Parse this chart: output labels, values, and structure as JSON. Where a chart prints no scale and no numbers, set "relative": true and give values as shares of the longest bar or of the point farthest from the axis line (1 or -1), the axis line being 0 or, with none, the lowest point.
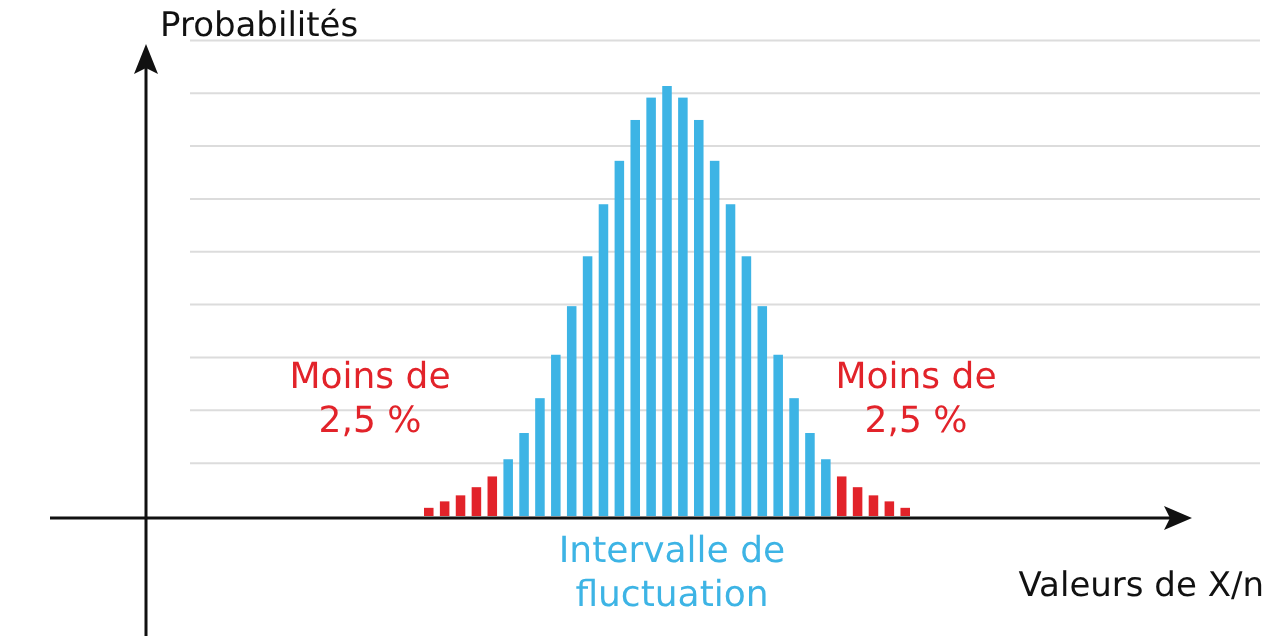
{
  "chart_data": {
    "type": "bar",
    "relative": true,
    "grid": true,
    "ylabel": "Probabilités",
    "xlabel": "Valeurs de X/n",
    "categories": [
      null,
      null,
      null,
      null,
      null,
      null,
      null,
      null,
      null,
      null,
      null,
      null,
      null,
      null,
      null,
      null,
      null,
      null,
      null,
      null,
      null,
      null,
      null,
      null,
      null,
      null,
      null,
      null,
      null,
      null,
      null
    ],
    "values": [
      0.019,
      0.034,
      0.048,
      0.067,
      0.092,
      0.132,
      0.193,
      0.274,
      0.375,
      0.488,
      0.604,
      0.725,
      0.826,
      0.921,
      0.973,
      1,
      0.973,
      0.921,
      0.826,
      0.725,
      0.604,
      0.488,
      0.375,
      0.274,
      0.193,
      0.132,
      0.092,
      0.067,
      0.048,
      0.034,
      0.019
    ],
    "colors": [
      "#e2232a",
      "#e2232a",
      "#e2232a",
      "#e2232a",
      "#e2232a",
      "#3db4e5",
      "#3db4e5",
      "#3db4e5",
      "#3db4e5",
      "#3db4e5",
      "#3db4e5",
      "#3db4e5",
      "#3db4e5",
      "#3db4e5",
      "#3db4e5",
      "#3db4e5",
      "#3db4e5",
      "#3db4e5",
      "#3db4e5",
      "#3db4e5",
      "#3db4e5",
      "#3db4e5",
      "#3db4e5",
      "#3db4e5",
      "#3db4e5",
      "#3db4e5",
      "#e2232a",
      "#e2232a",
      "#e2232a",
      "#e2232a",
      "#e2232a"
    ],
    "annotations": [
      "Moins de 2,5 %",
      "Moins de 2,5 %",
      "Intervalle de fluctuation"
    ]
  }
}
